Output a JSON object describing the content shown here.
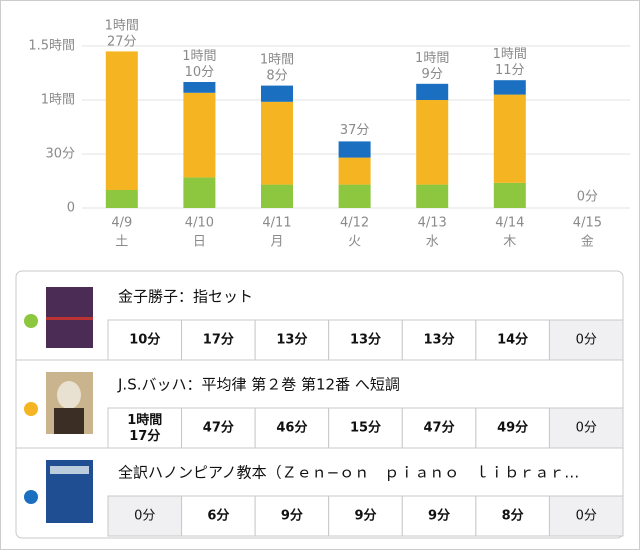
{
  "chart_data": {
    "type": "stacked-bar",
    "categories": [
      "4/9",
      "4/10",
      "4/11",
      "4/12",
      "4/13",
      "4/14",
      "4/15"
    ],
    "weekdays": [
      "土",
      "日",
      "月",
      "火",
      "水",
      "木",
      "金"
    ],
    "series": [
      {
        "name": "金子勝子：指セット",
        "color": "#8dc63f",
        "values": [
          10,
          17,
          13,
          13,
          13,
          14,
          0
        ]
      },
      {
        "name": "J.S.バッハ：平均律 第２巻 第12番 へ短調",
        "color": "#f5b422",
        "values": [
          77,
          47,
          46,
          15,
          47,
          49,
          0
        ]
      },
      {
        "name": "全訳ハノンピアノ教本（Ｚｅｎ−ｏｎ　ｐｉａｎｏ　ｌｉｂｒａｒ…",
        "color": "#1a6fc0",
        "values": [
          0,
          6,
          9,
          9,
          9,
          8,
          0
        ]
      }
    ],
    "totals": [
      87,
      70,
      68,
      37,
      69,
      71,
      0
    ],
    "value_labels": [
      "1時間\n27分",
      "1時間\n10分",
      "1時間\n8分",
      "37分",
      "1時間\n9分",
      "1時間\n11分",
      "0分"
    ],
    "ylim": [
      0,
      110
    ],
    "yticks": [
      0,
      {
        "value": 30,
        "label": "30分"
      },
      {
        "value": 60,
        "label": "1時間"
      },
      {
        "value": 90,
        "label": "1.5時間"
      }
    ],
    "grid": true
  },
  "table": {
    "rows": [
      [
        "10分",
        "17分",
        "13分",
        "13分",
        "13分",
        "14分",
        "0分"
      ],
      [
        "1時間\n17分",
        "47分",
        "46分",
        "15分",
        "47分",
        "49分",
        "0分"
      ],
      [
        "0分",
        "6分",
        "9分",
        "9分",
        "9分",
        "8分",
        "0分"
      ]
    ]
  }
}
